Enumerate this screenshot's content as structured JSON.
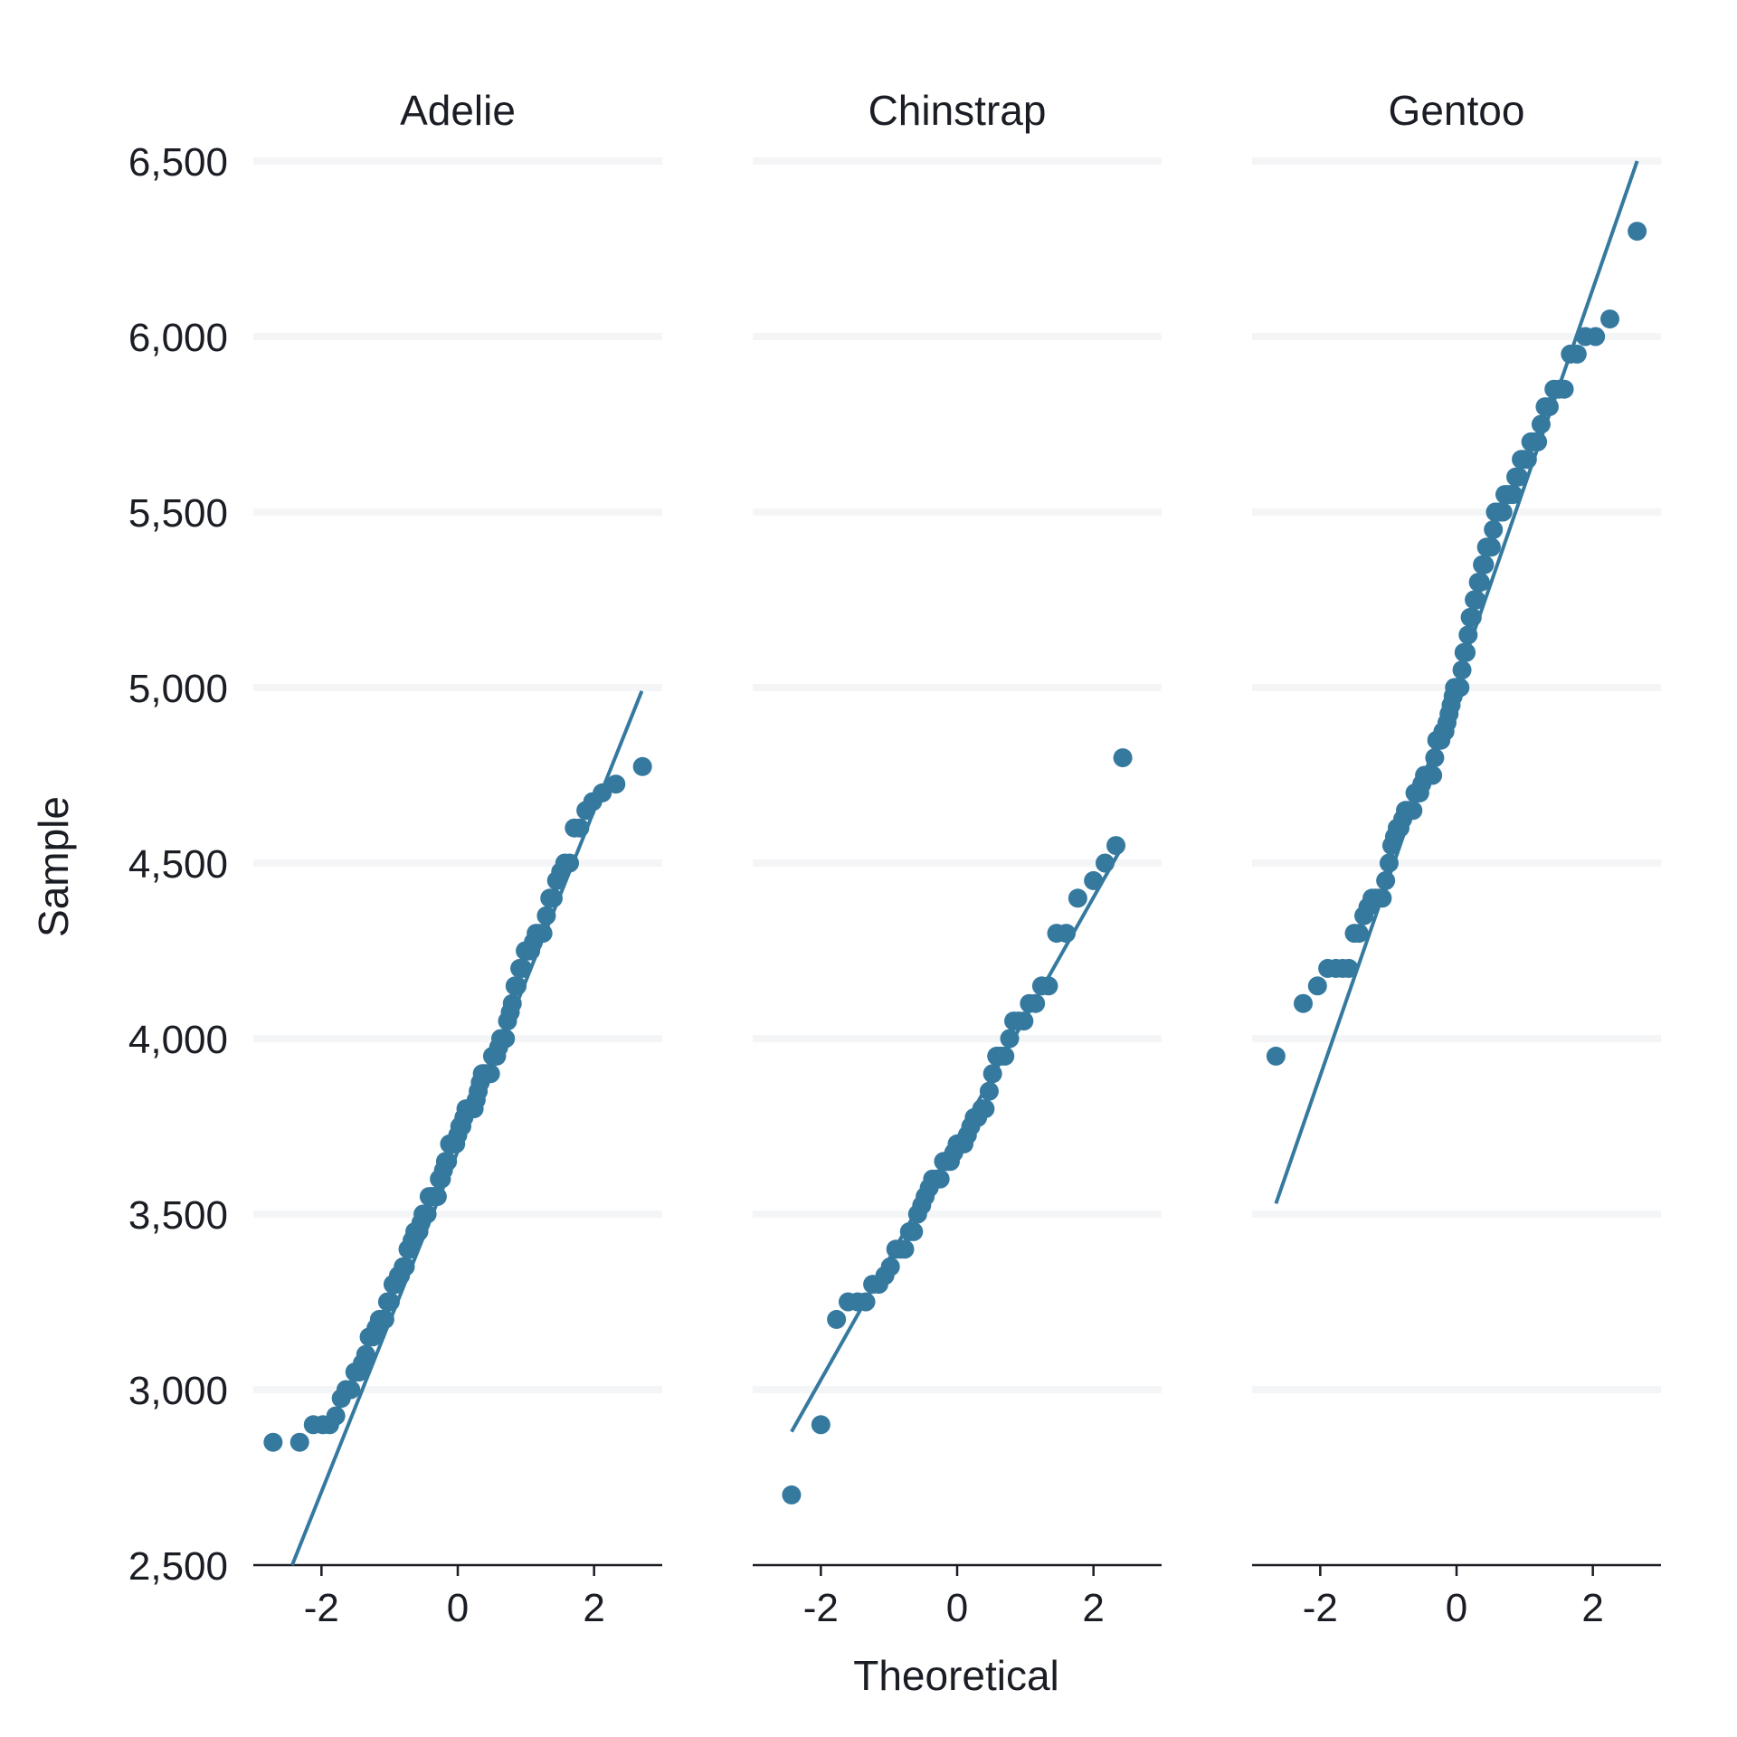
{
  "chart_data": {
    "type": "scatter",
    "subtype": "qq-plot-faceted",
    "xlabel": "Theoretical",
    "ylabel": "Sample",
    "ylim": [
      2500,
      6500
    ],
    "xlim": [
      -3,
      3
    ],
    "yticks": [
      2500,
      3000,
      3500,
      4000,
      4500,
      5000,
      5500,
      6000,
      6500
    ],
    "ytick_labels": [
      "2,500",
      "3,000",
      "3,500",
      "4,000",
      "4,500",
      "5,000",
      "5,500",
      "6,000",
      "6,500"
    ],
    "xticks": [
      -2,
      0,
      2
    ],
    "xtick_labels": [
      "-2",
      "0",
      "2"
    ],
    "grid": "horizontal",
    "point_color": "#35799f",
    "line_color": "#35799f",
    "facets": [
      {
        "title": "Adelie",
        "line": [
          [
            -2.43,
            2500
          ],
          [
            2.7,
            4990
          ]
        ],
        "points": [
          [
            -2.71,
            2850
          ],
          [
            -2.32,
            2850
          ],
          [
            -2.12,
            2900
          ],
          [
            -1.98,
            2900
          ],
          [
            -1.88,
            2900
          ],
          [
            -1.79,
            2925
          ],
          [
            -1.71,
            2975
          ],
          [
            -1.64,
            3000
          ],
          [
            -1.57,
            3000
          ],
          [
            -1.51,
            3050
          ],
          [
            -1.45,
            3050
          ],
          [
            -1.4,
            3075
          ],
          [
            -1.35,
            3100
          ],
          [
            -1.3,
            3150
          ],
          [
            -1.25,
            3150
          ],
          [
            -1.2,
            3175
          ],
          [
            -1.15,
            3200
          ],
          [
            -1.11,
            3200
          ],
          [
            -1.07,
            3200
          ],
          [
            -1.03,
            3250
          ],
          [
            -0.99,
            3250
          ],
          [
            -0.95,
            3300
          ],
          [
            -0.91,
            3300
          ],
          [
            -0.87,
            3325
          ],
          [
            -0.84,
            3325
          ],
          [
            -0.8,
            3350
          ],
          [
            -0.77,
            3350
          ],
          [
            -0.73,
            3400
          ],
          [
            -0.7,
            3400
          ],
          [
            -0.67,
            3425
          ],
          [
            -0.63,
            3450
          ],
          [
            -0.6,
            3450
          ],
          [
            -0.57,
            3450
          ],
          [
            -0.54,
            3475
          ],
          [
            -0.51,
            3500
          ],
          [
            -0.48,
            3500
          ],
          [
            -0.45,
            3500
          ],
          [
            -0.42,
            3550
          ],
          [
            -0.39,
            3550
          ],
          [
            -0.36,
            3550
          ],
          [
            -0.33,
            3550
          ],
          [
            -0.3,
            3550
          ],
          [
            -0.27,
            3600
          ],
          [
            -0.24,
            3600
          ],
          [
            -0.21,
            3625
          ],
          [
            -0.18,
            3650
          ],
          [
            -0.15,
            3650
          ],
          [
            -0.12,
            3700
          ],
          [
            -0.09,
            3700
          ],
          [
            -0.06,
            3700
          ],
          [
            -0.03,
            3700
          ],
          [
            0.0,
            3725
          ],
          [
            0.03,
            3750
          ],
          [
            0.06,
            3750
          ],
          [
            0.09,
            3775
          ],
          [
            0.12,
            3800
          ],
          [
            0.15,
            3800
          ],
          [
            0.18,
            3800
          ],
          [
            0.21,
            3800
          ],
          [
            0.24,
            3800
          ],
          [
            0.27,
            3825
          ],
          [
            0.3,
            3850
          ],
          [
            0.33,
            3875
          ],
          [
            0.36,
            3900
          ],
          [
            0.39,
            3900
          ],
          [
            0.42,
            3900
          ],
          [
            0.45,
            3900
          ],
          [
            0.48,
            3900
          ],
          [
            0.51,
            3950
          ],
          [
            0.54,
            3950
          ],
          [
            0.57,
            3950
          ],
          [
            0.6,
            3975
          ],
          [
            0.63,
            4000
          ],
          [
            0.67,
            4000
          ],
          [
            0.7,
            4000
          ],
          [
            0.73,
            4050
          ],
          [
            0.77,
            4075
          ],
          [
            0.8,
            4100
          ],
          [
            0.84,
            4150
          ],
          [
            0.87,
            4150
          ],
          [
            0.91,
            4200
          ],
          [
            0.95,
            4200
          ],
          [
            0.99,
            4250
          ],
          [
            1.03,
            4250
          ],
          [
            1.07,
            4250
          ],
          [
            1.11,
            4275
          ],
          [
            1.15,
            4300
          ],
          [
            1.2,
            4300
          ],
          [
            1.25,
            4300
          ],
          [
            1.3,
            4350
          ],
          [
            1.35,
            4400
          ],
          [
            1.4,
            4400
          ],
          [
            1.45,
            4450
          ],
          [
            1.51,
            4475
          ],
          [
            1.57,
            4500
          ],
          [
            1.64,
            4500
          ],
          [
            1.71,
            4600
          ],
          [
            1.79,
            4600
          ],
          [
            1.88,
            4650
          ],
          [
            1.98,
            4675
          ],
          [
            2.12,
            4700
          ],
          [
            2.32,
            4725
          ],
          [
            2.71,
            4775
          ]
        ]
      },
      {
        "title": "Chinstrap",
        "line": [
          [
            -2.43,
            2880
          ],
          [
            2.43,
            4550
          ]
        ],
        "points": [
          [
            -2.43,
            2700
          ],
          [
            -2.0,
            2900
          ],
          [
            -1.77,
            3200
          ],
          [
            -1.6,
            3250
          ],
          [
            -1.46,
            3250
          ],
          [
            -1.34,
            3250
          ],
          [
            -1.24,
            3300
          ],
          [
            -1.15,
            3300
          ],
          [
            -1.06,
            3325
          ],
          [
            -0.98,
            3350
          ],
          [
            -0.9,
            3400
          ],
          [
            -0.83,
            3400
          ],
          [
            -0.77,
            3400
          ],
          [
            -0.7,
            3450
          ],
          [
            -0.64,
            3450
          ],
          [
            -0.58,
            3500
          ],
          [
            -0.52,
            3525
          ],
          [
            -0.47,
            3550
          ],
          [
            -0.41,
            3575
          ],
          [
            -0.36,
            3600
          ],
          [
            -0.3,
            3600
          ],
          [
            -0.25,
            3600
          ],
          [
            -0.2,
            3650
          ],
          [
            -0.15,
            3650
          ],
          [
            -0.1,
            3650
          ],
          [
            -0.05,
            3675
          ],
          [
            0.0,
            3700
          ],
          [
            0.05,
            3700
          ],
          [
            0.1,
            3700
          ],
          [
            0.15,
            3725
          ],
          [
            0.2,
            3750
          ],
          [
            0.25,
            3775
          ],
          [
            0.3,
            3775
          ],
          [
            0.36,
            3800
          ],
          [
            0.41,
            3800
          ],
          [
            0.47,
            3850
          ],
          [
            0.52,
            3900
          ],
          [
            0.58,
            3950
          ],
          [
            0.64,
            3950
          ],
          [
            0.7,
            3950
          ],
          [
            0.77,
            4000
          ],
          [
            0.83,
            4050
          ],
          [
            0.9,
            4050
          ],
          [
            0.98,
            4050
          ],
          [
            1.06,
            4100
          ],
          [
            1.15,
            4100
          ],
          [
            1.24,
            4150
          ],
          [
            1.34,
            4150
          ],
          [
            1.46,
            4300
          ],
          [
            1.6,
            4300
          ],
          [
            1.77,
            4400
          ],
          [
            2.0,
            4450
          ],
          [
            2.17,
            4500
          ],
          [
            2.33,
            4550
          ],
          [
            2.43,
            4800
          ]
        ]
      },
      {
        "title": "Gentoo",
        "line": [
          [
            -2.65,
            3530
          ],
          [
            2.65,
            6500
          ]
        ],
        "points": [
          [
            -2.65,
            3950
          ],
          [
            -2.25,
            4100
          ],
          [
            -2.04,
            4150
          ],
          [
            -1.89,
            4200
          ],
          [
            -1.77,
            4200
          ],
          [
            -1.67,
            4200
          ],
          [
            -1.58,
            4200
          ],
          [
            -1.5,
            4300
          ],
          [
            -1.43,
            4300
          ],
          [
            -1.36,
            4350
          ],
          [
            -1.3,
            4375
          ],
          [
            -1.24,
            4400
          ],
          [
            -1.19,
            4400
          ],
          [
            -1.14,
            4400
          ],
          [
            -1.09,
            4400
          ],
          [
            -1.04,
            4450
          ],
          [
            -0.99,
            4500
          ],
          [
            -0.95,
            4550
          ],
          [
            -0.91,
            4575
          ],
          [
            -0.87,
            4600
          ],
          [
            -0.83,
            4600
          ],
          [
            -0.79,
            4625
          ],
          [
            -0.75,
            4650
          ],
          [
            -0.71,
            4650
          ],
          [
            -0.68,
            4650
          ],
          [
            -0.64,
            4650
          ],
          [
            -0.61,
            4700
          ],
          [
            -0.57,
            4700
          ],
          [
            -0.54,
            4700
          ],
          [
            -0.51,
            4725
          ],
          [
            -0.47,
            4750
          ],
          [
            -0.44,
            4750
          ],
          [
            -0.41,
            4750
          ],
          [
            -0.38,
            4750
          ],
          [
            -0.35,
            4750
          ],
          [
            -0.32,
            4800
          ],
          [
            -0.29,
            4850
          ],
          [
            -0.26,
            4850
          ],
          [
            -0.23,
            4850
          ],
          [
            -0.2,
            4875
          ],
          [
            -0.17,
            4875
          ],
          [
            -0.14,
            4900
          ],
          [
            -0.11,
            4925
          ],
          [
            -0.08,
            4950
          ],
          [
            -0.05,
            4975
          ],
          [
            -0.03,
            5000
          ],
          [
            0.0,
            5000
          ],
          [
            0.03,
            5000
          ],
          [
            0.05,
            5000
          ],
          [
            0.08,
            5050
          ],
          [
            0.11,
            5100
          ],
          [
            0.14,
            5100
          ],
          [
            0.17,
            5150
          ],
          [
            0.2,
            5200
          ],
          [
            0.23,
            5200
          ],
          [
            0.26,
            5250
          ],
          [
            0.29,
            5250
          ],
          [
            0.32,
            5300
          ],
          [
            0.35,
            5300
          ],
          [
            0.38,
            5350
          ],
          [
            0.41,
            5350
          ],
          [
            0.44,
            5400
          ],
          [
            0.47,
            5400
          ],
          [
            0.51,
            5400
          ],
          [
            0.54,
            5450
          ],
          [
            0.57,
            5500
          ],
          [
            0.61,
            5500
          ],
          [
            0.64,
            5500
          ],
          [
            0.68,
            5500
          ],
          [
            0.71,
            5550
          ],
          [
            0.75,
            5550
          ],
          [
            0.79,
            5550
          ],
          [
            0.83,
            5550
          ],
          [
            0.87,
            5600
          ],
          [
            0.91,
            5600
          ],
          [
            0.95,
            5650
          ],
          [
            0.99,
            5650
          ],
          [
            1.04,
            5650
          ],
          [
            1.09,
            5700
          ],
          [
            1.14,
            5700
          ],
          [
            1.19,
            5700
          ],
          [
            1.24,
            5750
          ],
          [
            1.3,
            5800
          ],
          [
            1.36,
            5800
          ],
          [
            1.43,
            5850
          ],
          [
            1.5,
            5850
          ],
          [
            1.58,
            5850
          ],
          [
            1.67,
            5950
          ],
          [
            1.77,
            5950
          ],
          [
            1.89,
            6000
          ],
          [
            2.04,
            6000
          ],
          [
            2.25,
            6050
          ],
          [
            2.65,
            6300
          ]
        ]
      }
    ]
  }
}
